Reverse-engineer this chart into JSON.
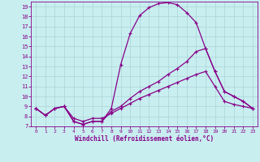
{
  "xlabel": "Windchill (Refroidissement éolien,°C)",
  "bg_color": "#c8eef0",
  "grid_color": "#b0d8da",
  "line_color": "#880088",
  "xlim": [
    -0.5,
    23.5
  ],
  "ylim": [
    7,
    19.5
  ],
  "xticks": [
    0,
    1,
    2,
    3,
    4,
    5,
    6,
    7,
    8,
    9,
    10,
    11,
    12,
    13,
    14,
    15,
    16,
    17,
    18,
    19,
    20,
    21,
    22,
    23
  ],
  "yticks": [
    7,
    8,
    9,
    10,
    11,
    12,
    13,
    14,
    15,
    16,
    17,
    18,
    19
  ],
  "line1_x": [
    0,
    1,
    2,
    3,
    4,
    5,
    6,
    7,
    8,
    9,
    10,
    11,
    12,
    13,
    14,
    15,
    16,
    17,
    18,
    19,
    20,
    21,
    22,
    23
  ],
  "line1_y": [
    8.8,
    8.1,
    8.8,
    9.0,
    7.5,
    7.2,
    7.5,
    7.5,
    8.8,
    13.2,
    16.3,
    18.1,
    18.9,
    19.3,
    19.4,
    19.2,
    18.4,
    17.4,
    14.8,
    12.5,
    10.5,
    10.0,
    9.5,
    8.8
  ],
  "line2_x": [
    0,
    1,
    2,
    3,
    4,
    5,
    6,
    7,
    8,
    9,
    10,
    11,
    12,
    13,
    14,
    15,
    16,
    17,
    18,
    19,
    20,
    21,
    22,
    23
  ],
  "line2_y": [
    8.8,
    8.1,
    8.8,
    9.0,
    7.5,
    7.2,
    7.5,
    7.5,
    8.5,
    9.0,
    9.8,
    10.5,
    11.0,
    11.5,
    12.2,
    12.8,
    13.5,
    14.5,
    14.8,
    12.5,
    10.5,
    10.0,
    9.5,
    8.8
  ],
  "line3_x": [
    0,
    1,
    2,
    3,
    4,
    5,
    6,
    7,
    8,
    9,
    10,
    11,
    12,
    13,
    14,
    15,
    16,
    17,
    18,
    19,
    20,
    21,
    22,
    23
  ],
  "line3_y": [
    8.8,
    8.1,
    8.8,
    9.0,
    7.8,
    7.5,
    7.8,
    7.8,
    8.3,
    8.8,
    9.3,
    9.8,
    10.2,
    10.6,
    11.0,
    11.4,
    11.8,
    12.2,
    12.5,
    11.0,
    9.5,
    9.2,
    9.0,
    8.8
  ]
}
